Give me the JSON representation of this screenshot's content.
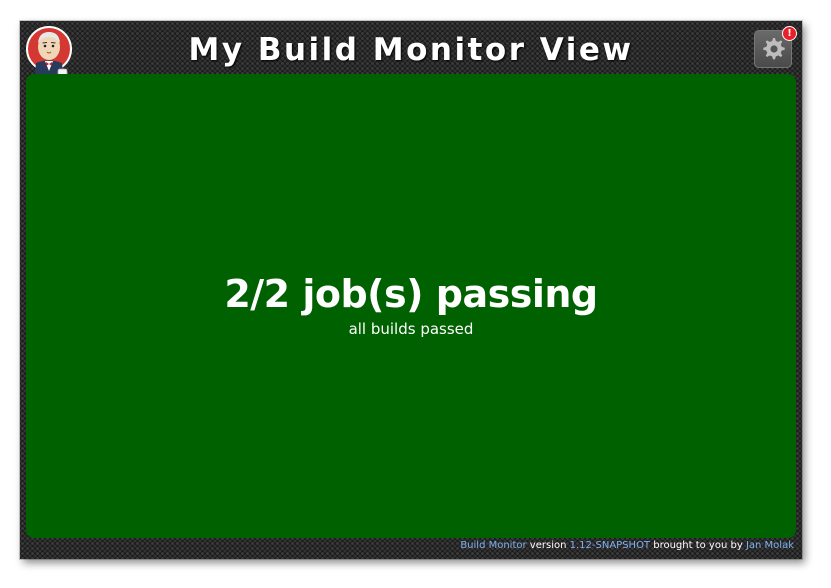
{
  "header": {
    "title": "My Build Monitor View",
    "logo_icon": "jenkins-butler-icon",
    "settings_icon": "gear-icon",
    "notification_badge": "!"
  },
  "summary": {
    "headline": "2/2 job(s) passing",
    "subtitle": "all builds passed"
  },
  "footer": {
    "product_link": "Build Monitor",
    "version_label": "version",
    "version_link": "1.12-SNAPSHOT",
    "brought_by": "brought to you by",
    "author_link": "Jan Molak"
  },
  "colors": {
    "success_panel": "#006100",
    "background": "#1b1b1b",
    "link": "#7fb2f0",
    "badge": "#e8202a"
  }
}
